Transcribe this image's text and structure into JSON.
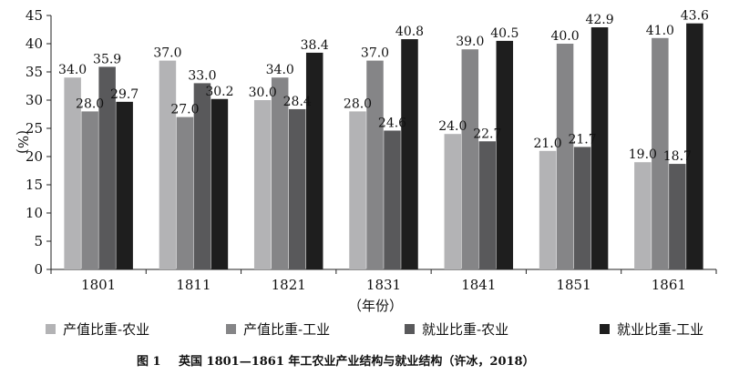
{
  "chart_data": {
    "type": "bar",
    "categories": [
      "1801",
      "1811",
      "1821",
      "1831",
      "1841",
      "1851",
      "1861"
    ],
    "series": [
      {
        "name": "产值比重-农业",
        "color": "#b3b3b5",
        "values": [
          34.0,
          37.0,
          30.0,
          28.0,
          24.0,
          21.0,
          19.0
        ]
      },
      {
        "name": "产值比重-工业",
        "color": "#858587",
        "values": [
          28.0,
          27.0,
          34.0,
          37.0,
          39.0,
          40.0,
          41.0
        ]
      },
      {
        "name": "就业比重-农业",
        "color": "#59595b",
        "values": [
          35.9,
          33.0,
          28.4,
          24.6,
          22.7,
          21.7,
          18.7
        ]
      },
      {
        "name": "就业比重-工业",
        "color": "#1e1e1e",
        "values": [
          29.7,
          30.2,
          38.4,
          40.8,
          40.5,
          42.9,
          43.6
        ]
      }
    ],
    "value_labels": [
      [
        "34.0",
        "37.0",
        "30.0",
        "28.0",
        "24.0",
        "21.0",
        "19.0"
      ],
      [
        "28.0",
        "27.0",
        "34.0",
        "37.0",
        "39.0",
        "40.0",
        "41.0"
      ],
      [
        "35.9",
        "33.0",
        "28.4",
        "24.6",
        "22.7",
        "21.7",
        "18.7"
      ],
      [
        "29.7",
        "30.2",
        "38.4",
        "40.8",
        "40.5",
        "42.9",
        "43.6"
      ]
    ],
    "yticks": [
      "0",
      "5",
      "10",
      "15",
      "20",
      "25",
      "30",
      "35",
      "40",
      "45"
    ],
    "ylim": [
      0,
      45
    ],
    "xlabel": "（年份）",
    "ylabel": "(%)",
    "grid": false,
    "legend_position": "bottom"
  },
  "caption": {
    "number": "图 1",
    "text": "英国 1801—1861 年工农业产业结构与就业结构（许冰，2018）"
  }
}
